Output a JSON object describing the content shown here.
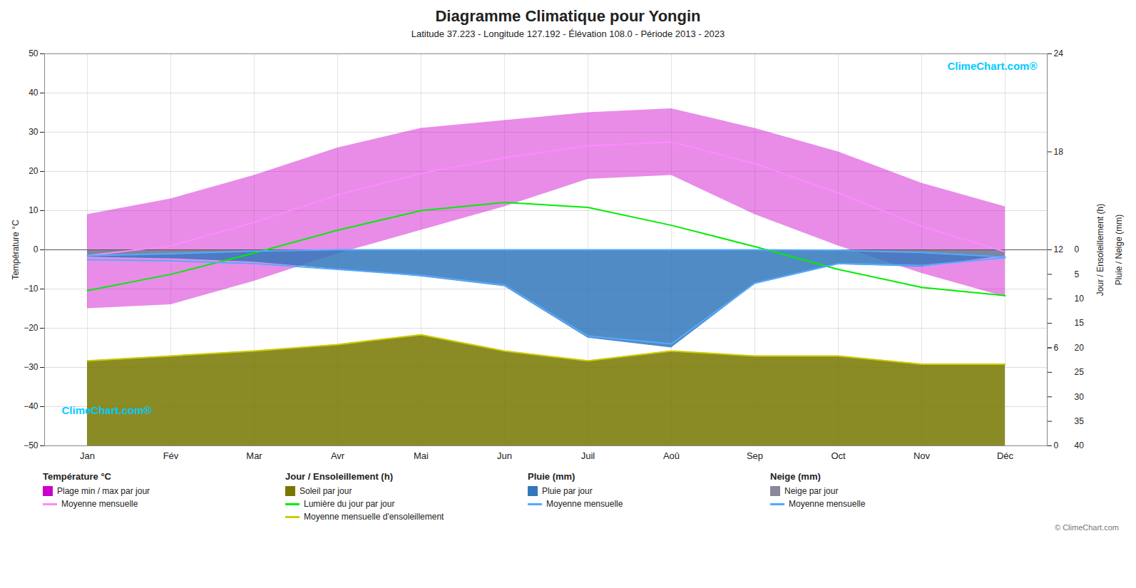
{
  "chart_data": {
    "type": "area",
    "title": "Diagramme Climatique pour Yongin",
    "subtitle": "Latitude 37.223 - Longitude 127.192 - Élévation 108.0 - Période 2013 - 2023",
    "categories": [
      "Jan",
      "Fév",
      "Mar",
      "Avr",
      "Mai",
      "Jun",
      "Juil",
      "Aoû",
      "Sep",
      "Oct",
      "Nov",
      "Déc"
    ],
    "y_label": "Température °C",
    "y2_label": "Pluie / Neige (mm)",
    "y3_label": "Jour / Ensoleillement (h)",
    "ylim": [
      -50,
      50
    ],
    "yticks": [
      -50,
      -40,
      -30,
      -20,
      -10,
      0,
      10,
      20,
      30,
      40,
      50
    ],
    "y2lim": [
      40,
      -40
    ],
    "y2ticks": [
      0,
      5,
      10,
      15,
      20,
      25,
      30,
      35,
      40
    ],
    "y3lim": [
      0,
      24
    ],
    "y3ticks": [
      0,
      6,
      12,
      18,
      24
    ],
    "grid": true,
    "legend": "bottom",
    "legend_groups": [
      "Température °C",
      "Jour / Ensoleillement (h)",
      "Pluie (mm)",
      "Neige (mm)"
    ],
    "series": [
      {
        "name": "Soleil par jour",
        "type": "area",
        "axis": "y3",
        "group": "Jour / Ensoleillement (h)",
        "color": "#777700",
        "values": [
          5.2,
          5.5,
          5.8,
          6.2,
          6.8,
          5.8,
          5.2,
          5.8,
          5.5,
          5.5,
          5.0,
          5.0
        ]
      },
      {
        "name": "Plage min / max par jour",
        "type": "range",
        "axis": "y",
        "group": "Température °C",
        "color": "#cc00cc",
        "low": [
          -15,
          -14,
          -8,
          -1,
          5,
          11,
          18,
          19,
          9,
          1,
          -6,
          -12
        ],
        "high": [
          9,
          13,
          19,
          26,
          31,
          33,
          35,
          36,
          31,
          25,
          17,
          11
        ]
      },
      {
        "name": "Pluie par jour",
        "type": "area",
        "axis": "y2",
        "group": "Pluie (mm)",
        "color": "#3377bb",
        "values": [
          1.5,
          1.8,
          2.5,
          4.0,
          5.5,
          7.5,
          18.0,
          20.0,
          7.0,
          3.0,
          3.5,
          1.2
        ]
      },
      {
        "name": "Neige par jour",
        "type": "area",
        "axis": "y2",
        "group": "Neige (mm)",
        "color": "#888899",
        "values": [
          1.2,
          0.8,
          0.3,
          0.0,
          0.0,
          0.0,
          0.0,
          0.0,
          0.0,
          0.1,
          0.5,
          1.3
        ]
      },
      {
        "name": "Lumière du jour par jour",
        "type": "line",
        "axis": "y3",
        "group": "Jour / Ensoleillement (h)",
        "color": "#00ee00",
        "values": [
          9.5,
          10.5,
          11.8,
          13.2,
          14.4,
          14.9,
          14.6,
          13.5,
          12.2,
          10.8,
          9.7,
          9.2
        ]
      },
      {
        "name": "Moyenne mensuelle d'ensoleillement",
        "type": "line",
        "axis": "y3",
        "group": "Jour / Ensoleillement (h)",
        "color": "#cccc00",
        "values": [
          5.2,
          5.5,
          5.8,
          6.2,
          6.8,
          5.8,
          5.2,
          5.8,
          5.5,
          5.5,
          5.0,
          5.0
        ]
      },
      {
        "name": "Moyenne mensuelle",
        "type": "line",
        "axis": "y",
        "group": "Température °C",
        "color": "#ff88ff",
        "values": [
          -1.5,
          1.0,
          7.0,
          14.0,
          19.5,
          23.5,
          26.5,
          27.5,
          22.0,
          14.5,
          6.0,
          -0.5
        ]
      },
      {
        "name": "Moyenne mensuelle",
        "type": "line",
        "axis": "y",
        "group": "Pluie (mm)",
        "color": "#55aaff",
        "values": [
          -2.5,
          -2.8,
          -3.5,
          -5.0,
          -6.5,
          -9.0,
          -22.0,
          -24.0,
          -8.5,
          -3.5,
          -4.0,
          -2.0
        ]
      },
      {
        "name": "Moyenne mensuelle",
        "type": "line",
        "axis": "y",
        "group": "Neige (mm)",
        "color": "#55aaff",
        "values": [
          -1.5,
          -1.0,
          -0.3,
          0.0,
          0.0,
          0.0,
          0.0,
          0.0,
          0.0,
          -0.1,
          -0.7,
          -1.8
        ]
      }
    ],
    "annotations": [
      {
        "text": "ClimeChart.com®",
        "color": "#00ccff"
      },
      {
        "text": "ClimeChart.com®",
        "color": "#00ccff"
      }
    ],
    "caption": "© ClimeChart.com"
  }
}
